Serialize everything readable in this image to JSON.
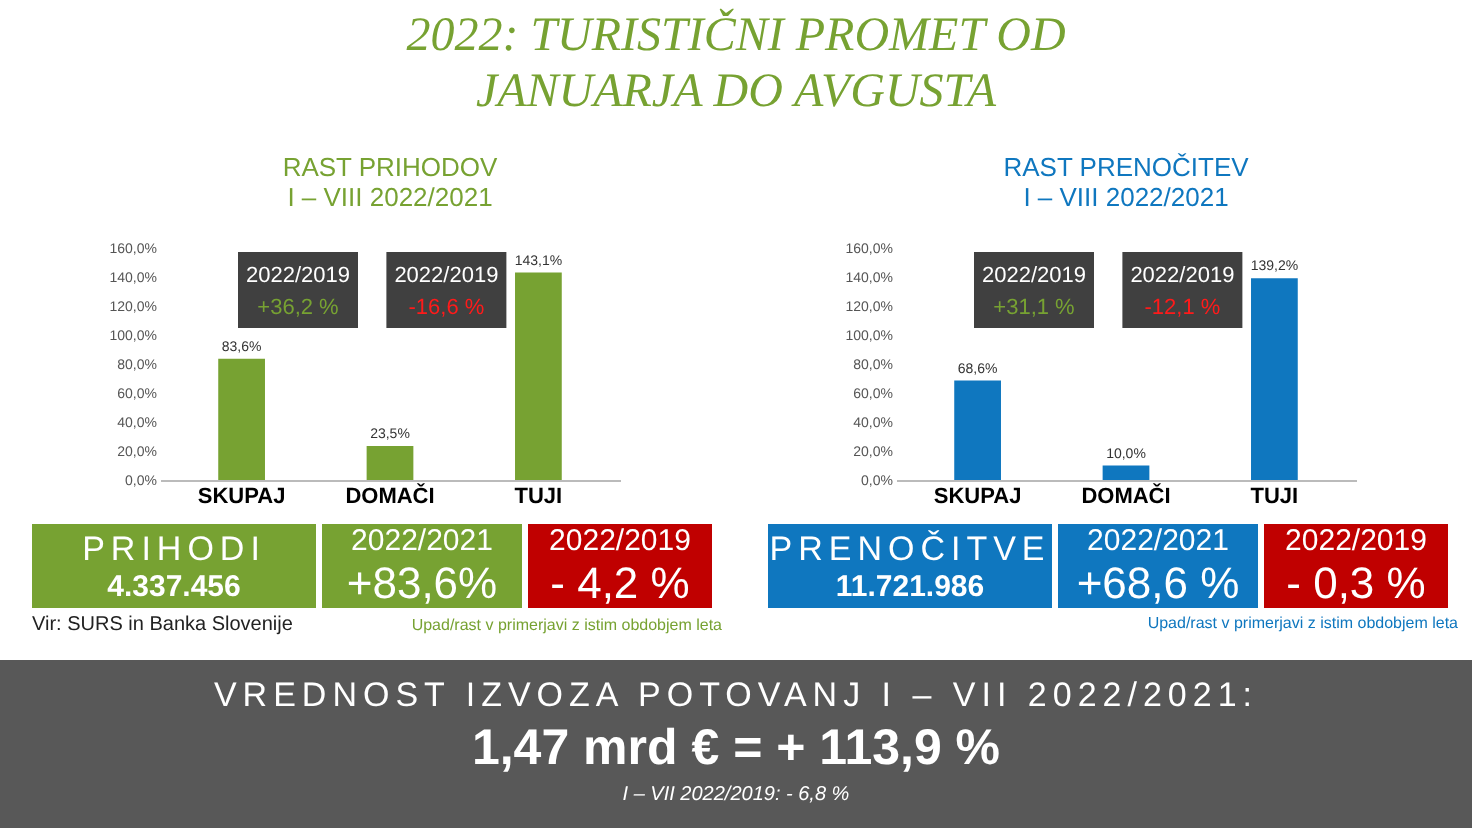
{
  "chart_data": [
    {
      "type": "other",
      "title": "2022: TURISTIČNI PROMET OD JANUARJA DO AVGUSTA"
    },
    {
      "type": "bar",
      "title": "RAST PRIHODOV",
      "subtitle": "I – VIII 2022/2021",
      "categories": [
        "SKUPAJ",
        "DOMAČI",
        "TUJI"
      ],
      "values": [
        83.6,
        23.5,
        143.1
      ],
      "value_labels": [
        "83,6%",
        "23,5%",
        "143,1%"
      ],
      "color": "#77a232",
      "ylim": [
        0,
        160
      ],
      "yticks": [
        {
          "value": 0,
          "label": "0,0%"
        },
        {
          "value": 20,
          "label": "20,0%"
        },
        {
          "value": 40,
          "label": "40,0%"
        },
        {
          "value": 60,
          "label": "60,0%"
        },
        {
          "value": 80,
          "label": "80,0%"
        },
        {
          "value": 100,
          "label": "100,0%"
        },
        {
          "value": 120,
          "label": "120,0%"
        },
        {
          "value": 140,
          "label": "140,0%"
        },
        {
          "value": 160,
          "label": "160,0%"
        }
      ],
      "annotations": [
        "2022/2019",
        "+36,2 %",
        "2022/2019",
        "-16,6 %",
        "PRIHODI\n4.337.456",
        "2022/2021\n+83,6%",
        "2022/2019\n- 4,2 %",
        "Vir: SURS in Banka Slovenije",
        "Upad/rast v primerjavi z istim obdobjem leta"
      ]
    },
    {
      "type": "bar",
      "title": "RAST PRENOČITEV",
      "subtitle": "I – VIII 2022/2021",
      "categories": [
        "SKUPAJ",
        "DOMAČI",
        "TUJI"
      ],
      "values": [
        68.6,
        10.0,
        139.2
      ],
      "value_labels": [
        "68,6%",
        "10,0%",
        "139,2%"
      ],
      "color": "#0f77bf",
      "ylim": [
        0,
        160
      ],
      "yticks": [
        {
          "value": 0,
          "label": "0,0%"
        },
        {
          "value": 20,
          "label": "20,0%"
        },
        {
          "value": 40,
          "label": "40,0%"
        },
        {
          "value": 60,
          "label": "60,0%"
        },
        {
          "value": 80,
          "label": "80,0%"
        },
        {
          "value": 100,
          "label": "100,0%"
        },
        {
          "value": 120,
          "label": "120,0%"
        },
        {
          "value": 140,
          "label": "140,0%"
        },
        {
          "value": 160,
          "label": "160,0%"
        }
      ],
      "annotations": [
        "2022/2019",
        "+31,1 %",
        "2022/2019",
        "-12,1 %",
        "PRENOČITVE\n11.721.986",
        "2022/2021\n+68,6 %",
        "2022/2019\n- 0,3 %",
        "Upad/rast v primerjavi z istim obdobjem leta"
      ]
    },
    {
      "type": "other",
      "annotations": [
        "VREDNOST IZVOZA POTOVANJ I – VII 2022/2021:",
        "1,47 mrd € = + 113,9 %",
        "I – VII 2022/2019: - 6,8 %"
      ]
    }
  ]
}
